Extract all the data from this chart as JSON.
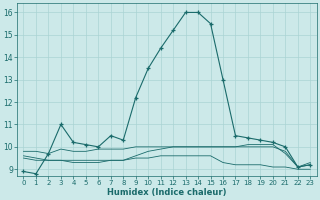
{
  "xlabel": "Humidex (Indice chaleur)",
  "bg_color": "#cce9e9",
  "grid_color": "#aad4d4",
  "line_color": "#1a6b6b",
  "xlim": [
    -0.5,
    23.5
  ],
  "ylim": [
    8.7,
    16.4
  ],
  "xtick_labels": [
    "0",
    "1",
    "2",
    "3",
    "4",
    "5",
    "6",
    "7",
    "8",
    "9",
    "10",
    "11",
    "12",
    "13",
    "14",
    "15",
    "16",
    "17",
    "18",
    "19",
    "20",
    "21",
    "22",
    "23"
  ],
  "yticks": [
    9,
    10,
    11,
    12,
    13,
    14,
    15,
    16
  ],
  "series": [
    [
      8.9,
      8.8,
      9.7,
      11.0,
      10.2,
      10.1,
      10.0,
      10.5,
      10.3,
      12.2,
      13.5,
      14.4,
      15.2,
      16.0,
      16.0,
      15.5,
      13.0,
      10.5,
      10.4,
      10.3,
      10.2,
      10.0,
      9.1,
      9.2
    ],
    [
      9.8,
      9.8,
      9.7,
      9.9,
      9.8,
      9.8,
      9.9,
      9.9,
      9.9,
      10.0,
      10.0,
      10.0,
      10.0,
      10.0,
      10.0,
      10.0,
      10.0,
      10.0,
      10.0,
      10.0,
      10.0,
      9.8,
      9.1,
      9.3
    ],
    [
      9.5,
      9.4,
      9.4,
      9.4,
      9.4,
      9.4,
      9.4,
      9.4,
      9.4,
      9.5,
      9.5,
      9.6,
      9.6,
      9.6,
      9.6,
      9.6,
      9.3,
      9.2,
      9.2,
      9.2,
      9.1,
      9.1,
      9.0,
      9.0
    ],
    [
      9.6,
      9.5,
      9.4,
      9.4,
      9.3,
      9.3,
      9.3,
      9.4,
      9.4,
      9.6,
      9.8,
      9.9,
      10.0,
      10.0,
      10.0,
      10.0,
      10.0,
      10.0,
      10.1,
      10.1,
      10.1,
      9.7,
      9.1,
      9.2
    ]
  ],
  "marker": "+",
  "markersize": 3.5,
  "linewidth": 0.8
}
